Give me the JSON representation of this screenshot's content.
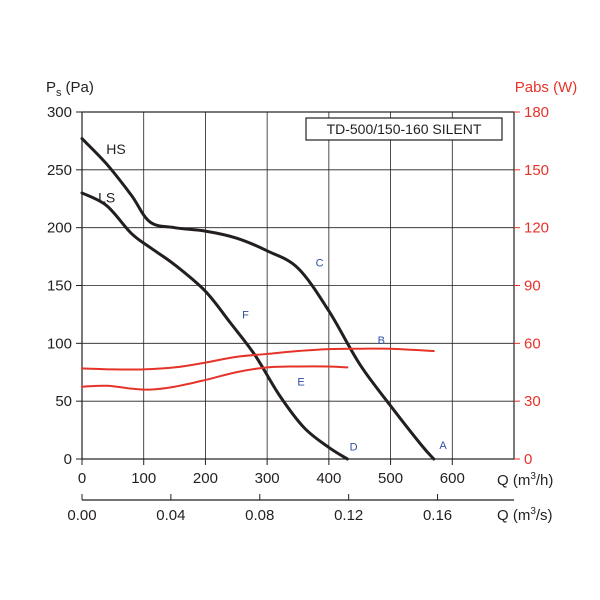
{
  "chart_data": {
    "type": "line",
    "title": "TD-500/150-160 SILENT",
    "y_left": {
      "label_main": "P",
      "label_sub": "s",
      "label_unit": "(Pa)",
      "range": [
        0,
        300
      ],
      "ticks": [
        "0",
        "50",
        "100",
        "150",
        "200",
        "250",
        "300"
      ]
    },
    "y_right": {
      "label": "Pabs (W)",
      "range": [
        0,
        180
      ],
      "ticks": [
        "0",
        "30",
        "60",
        "90",
        "120",
        "150",
        "180"
      ]
    },
    "x_primary": {
      "label_pre": "Q (m",
      "label_sup": "3",
      "label_post": "/h)",
      "range": [
        0,
        700
      ],
      "ticks": [
        "0",
        "100",
        "200",
        "300",
        "400",
        "500",
        "600"
      ]
    },
    "x_secondary": {
      "label_pre": "Q (m",
      "label_sup": "3",
      "label_post": "/s)",
      "range": [
        0,
        0.1944
      ],
      "ticks": [
        "0.00",
        "0.04",
        "0.08",
        "0.12",
        "0.16"
      ]
    },
    "grid": true,
    "series": [
      {
        "name": "HS",
        "axis": "left",
        "color": "#231f20",
        "x": [
          0,
          40,
          80,
          110,
          150,
          200,
          250,
          300,
          350,
          400,
          450,
          500,
          550,
          570
        ],
        "y": [
          277,
          255,
          228,
          205,
          200,
          197,
          191,
          180,
          165,
          128,
          82,
          46,
          12,
          0
        ]
      },
      {
        "name": "LS",
        "axis": "left",
        "color": "#231f20",
        "x": [
          0,
          40,
          80,
          110,
          150,
          200,
          240,
          280,
          320,
          360,
          400,
          430
        ],
        "y": [
          230,
          219,
          195,
          183,
          168,
          145,
          118,
          90,
          55,
          27,
          10,
          0
        ]
      },
      {
        "name": "",
        "axis": "right",
        "color": "#e6332a",
        "x": [
          0,
          50,
          100,
          150,
          200,
          250,
          300,
          350,
          400,
          450,
          500,
          570
        ],
        "y": [
          47,
          46.5,
          46.5,
          47.5,
          50,
          53,
          54.5,
          56,
          57,
          57.2,
          57.2,
          56
        ]
      },
      {
        "name": "",
        "axis": "right",
        "color": "#e6332a",
        "x": [
          0,
          40,
          80,
          110,
          150,
          200,
          250,
          300,
          350,
          400,
          430
        ],
        "y": [
          37.5,
          38,
          36.5,
          36,
          37.5,
          41,
          45,
          47.5,
          48,
          48,
          47.5
        ]
      }
    ],
    "curve_labels": [
      {
        "text": "HS",
        "x": 55,
        "y": 268
      },
      {
        "text": "LS",
        "x": 40,
        "y": 226
      }
    ],
    "point_labels": [
      {
        "text": "A",
        "x": 585,
        "y": 12
      },
      {
        "text": "B",
        "x": 485,
        "y": 103
      },
      {
        "text": "C",
        "x": 385,
        "y": 170
      },
      {
        "text": "D",
        "x": 440,
        "y": 11
      },
      {
        "text": "E",
        "x": 355,
        "y": 67
      },
      {
        "text": "F",
        "x": 265,
        "y": 125
      }
    ]
  }
}
